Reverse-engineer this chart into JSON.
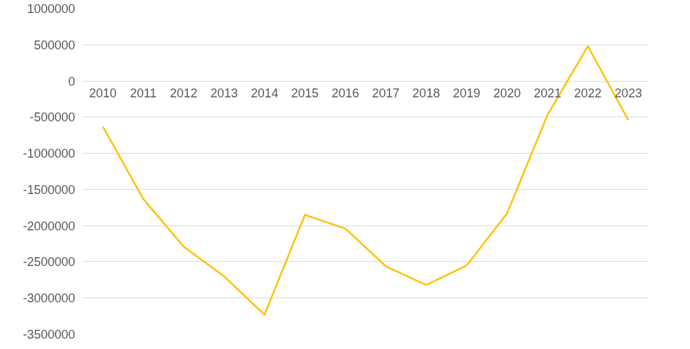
{
  "chart_data": {
    "type": "line",
    "categories": [
      "2010",
      "2011",
      "2012",
      "2013",
      "2014",
      "2015",
      "2016",
      "2017",
      "2018",
      "2019",
      "2020",
      "2021",
      "2022",
      "2023"
    ],
    "series": [
      {
        "color": "#ffc000",
        "values": [
          -630000,
          -1630000,
          -2290000,
          -2700000,
          -3230000,
          -1850000,
          -2040000,
          -2560000,
          -2820000,
          -2550000,
          -1830000,
          -470000,
          480000,
          -540000
        ]
      }
    ],
    "ylim": [
      -3500000,
      1000000
    ],
    "yticks": [
      -3500000,
      -3000000,
      -2500000,
      -2000000,
      -1500000,
      -1000000,
      -500000,
      0,
      500000,
      1000000
    ],
    "grid": "y",
    "marker": "none",
    "line_style": "solid"
  }
}
